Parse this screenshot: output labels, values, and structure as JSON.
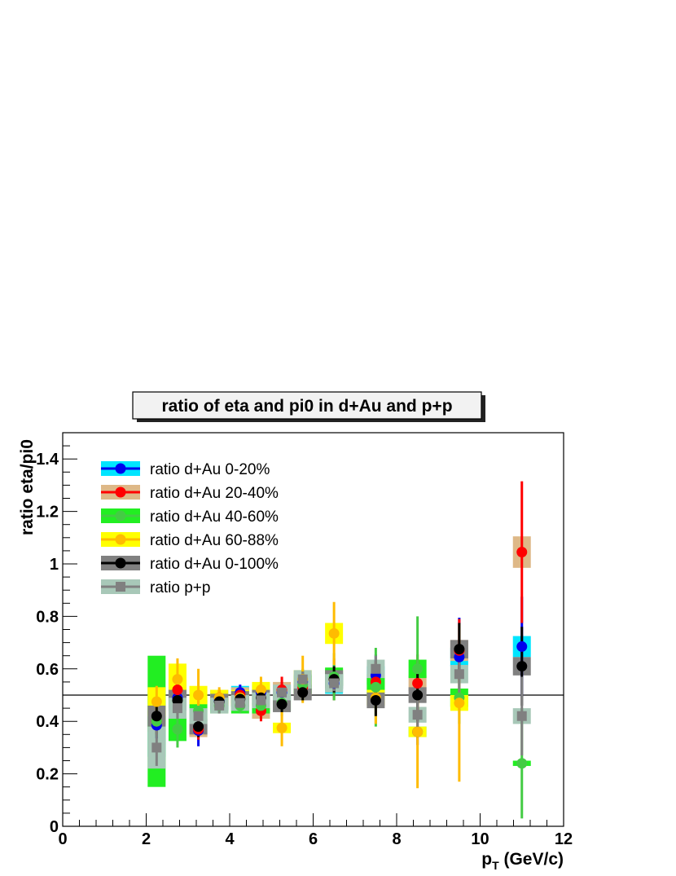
{
  "chart_data": {
    "type": "scatter",
    "title": "ratio of eta and pi0 in d+Au and p+p",
    "xlabel": "p",
    "xlabel_sub": "T",
    "xlabel_unit": " (GeV/c)",
    "ylabel": "ratio eta/pi0",
    "xlim": [
      0,
      12
    ],
    "ylim": [
      0,
      1.5
    ],
    "x_ticks": [
      "0",
      "2",
      "4",
      "6",
      "8",
      "10",
      "12"
    ],
    "y_ticks": [
      "0",
      "0.2",
      "0.4",
      "0.6",
      "0.8",
      "1",
      "1.2",
      "1.4"
    ],
    "grid": false,
    "legend_position": "top-left",
    "reference_line": 0.5,
    "series": [
      {
        "name": "ratio d+Au 0-20%",
        "marker_color": "#0000ee",
        "band_color": "#00e5ff",
        "marker": "circle",
        "points": [
          {
            "x": 2.25,
            "y": 0.385,
            "err": 0.05,
            "sys": 0.12
          },
          {
            "x": 2.75,
            "y": 0.49,
            "err": 0.05,
            "sys": 0.04
          },
          {
            "x": 3.25,
            "y": 0.365,
            "err": 0.06,
            "sys": 0.02
          },
          {
            "x": 3.75,
            "y": 0.48,
            "err": 0.03,
            "sys": 0.04
          },
          {
            "x": 4.25,
            "y": 0.51,
            "err": 0.03,
            "sys": 0.025
          },
          {
            "x": 4.75,
            "y": 0.51,
            "err": 0.03,
            "sys": 0.03
          },
          {
            "x": 5.25,
            "y": 0.51,
            "err": 0.04,
            "sys": 0.03
          },
          {
            "x": 5.75,
            "y": 0.55,
            "err": 0.04,
            "sys": 0.03
          },
          {
            "x": 6.5,
            "y": 0.545,
            "err": 0.05,
            "sys": 0.04
          },
          {
            "x": 7.5,
            "y": 0.575,
            "err": 0.08,
            "sys": 0.035
          },
          {
            "x": 8.5,
            "y": 0.36,
            "err": 0.05,
            "sys": 0.02
          },
          {
            "x": 9.5,
            "y": 0.645,
            "err": 0.15,
            "sys": 0.035
          },
          {
            "x": 11.0,
            "y": 0.685,
            "err": 0.19,
            "sys": 0.04
          }
        ]
      },
      {
        "name": "ratio d+Au 20-40%",
        "marker_color": "#ff0000",
        "band_color": "#deb887",
        "marker": "circle",
        "points": [
          {
            "x": 2.25,
            "y": 0.4,
            "err": 0.05,
            "sys": 0.04
          },
          {
            "x": 2.75,
            "y": 0.52,
            "err": 0.05,
            "sys": 0.04
          },
          {
            "x": 3.25,
            "y": 0.37,
            "err": 0.04,
            "sys": 0.03
          },
          {
            "x": 3.75,
            "y": 0.49,
            "err": 0.03,
            "sys": 0.03
          },
          {
            "x": 4.25,
            "y": 0.5,
            "err": 0.03,
            "sys": 0.03
          },
          {
            "x": 4.75,
            "y": 0.44,
            "err": 0.04,
            "sys": 0.03
          },
          {
            "x": 5.25,
            "y": 0.52,
            "err": 0.05,
            "sys": 0.03
          },
          {
            "x": 5.75,
            "y": 0.53,
            "err": 0.04,
            "sys": 0.03
          },
          {
            "x": 6.5,
            "y": 0.56,
            "err": 0.08,
            "sys": 0.04
          },
          {
            "x": 7.5,
            "y": 0.55,
            "err": 0.08,
            "sys": 0.03
          },
          {
            "x": 8.5,
            "y": 0.545,
            "err": 0.11,
            "sys": 0.03
          },
          {
            "x": 9.5,
            "y": 0.67,
            "err": 0.12,
            "sys": 0.04
          },
          {
            "x": 11.0,
            "y": 1.045,
            "err": 0.27,
            "sys": 0.06
          }
        ]
      },
      {
        "name": "ratio d+Au 40-60%",
        "marker_color": "#44cc44",
        "band_color": "#22ee22",
        "marker": "circle",
        "points": [
          {
            "x": 2.25,
            "y": 0.4,
            "err": 0.06,
            "sys": 0.25
          },
          {
            "x": 2.75,
            "y": 0.37,
            "err": 0.07,
            "sys": 0.045
          },
          {
            "x": 3.25,
            "y": 0.44,
            "err": 0.05,
            "sys": 0.04
          },
          {
            "x": 3.75,
            "y": 0.46,
            "err": 0.03,
            "sys": 0.03
          },
          {
            "x": 4.25,
            "y": 0.46,
            "err": 0.03,
            "sys": 0.03
          },
          {
            "x": 4.75,
            "y": 0.46,
            "err": 0.04,
            "sys": 0.03
          },
          {
            "x": 5.25,
            "y": 0.47,
            "err": 0.05,
            "sys": 0.03
          },
          {
            "x": 5.75,
            "y": 0.54,
            "err": 0.06,
            "sys": 0.035
          },
          {
            "x": 6.5,
            "y": 0.57,
            "err": 0.09,
            "sys": 0.035
          },
          {
            "x": 7.5,
            "y": 0.53,
            "err": 0.15,
            "sys": 0.035
          },
          {
            "x": 8.5,
            "y": 0.6,
            "err": 0.2,
            "sys": 0.035
          },
          {
            "x": 9.5,
            "y": 0.49,
            "err": 0.1,
            "sys": 0.035
          },
          {
            "x": 11.0,
            "y": 0.24,
            "err": 0.21,
            "sys": 0.01
          }
        ]
      },
      {
        "name": "ratio d+Au 60-88%",
        "marker_color": "#ffbb00",
        "band_color": "#ffff00",
        "marker": "circle",
        "points": [
          {
            "x": 2.25,
            "y": 0.475,
            "err": 0.06,
            "sys": 0.055
          },
          {
            "x": 2.75,
            "y": 0.56,
            "err": 0.08,
            "sys": 0.06
          },
          {
            "x": 3.25,
            "y": 0.5,
            "err": 0.1,
            "sys": 0.035
          },
          {
            "x": 3.75,
            "y": 0.49,
            "err": 0.04,
            "sys": 0.03
          },
          {
            "x": 4.25,
            "y": 0.49,
            "err": 0.04,
            "sys": 0.03
          },
          {
            "x": 4.75,
            "y": 0.52,
            "err": 0.05,
            "sys": 0.03
          },
          {
            "x": 5.25,
            "y": 0.375,
            "err": 0.07,
            "sys": 0.02
          },
          {
            "x": 5.75,
            "y": 0.56,
            "err": 0.09,
            "sys": 0.035
          },
          {
            "x": 6.5,
            "y": 0.735,
            "err": 0.12,
            "sys": 0.04
          },
          {
            "x": 7.5,
            "y": 0.49,
            "err": 0.1,
            "sys": 0.03
          },
          {
            "x": 8.5,
            "y": 0.36,
            "err": 0.215,
            "sys": 0.02
          },
          {
            "x": 9.5,
            "y": 0.47,
            "err": 0.3,
            "sys": 0.03
          }
        ]
      },
      {
        "name": "ratio d+Au 0-100%",
        "marker_color": "#000000",
        "band_color": "#808080",
        "marker": "circle",
        "points": [
          {
            "x": 2.25,
            "y": 0.42,
            "err": 0.05,
            "sys": 0.04
          },
          {
            "x": 2.75,
            "y": 0.48,
            "err": 0.04,
            "sys": 0.04
          },
          {
            "x": 3.25,
            "y": 0.38,
            "err": 0.04,
            "sys": 0.03
          },
          {
            "x": 3.75,
            "y": 0.475,
            "err": 0.02,
            "sys": 0.03
          },
          {
            "x": 4.25,
            "y": 0.485,
            "err": 0.02,
            "sys": 0.03
          },
          {
            "x": 4.75,
            "y": 0.49,
            "err": 0.03,
            "sys": 0.03
          },
          {
            "x": 5.25,
            "y": 0.465,
            "err": 0.03,
            "sys": 0.03
          },
          {
            "x": 5.75,
            "y": 0.51,
            "err": 0.03,
            "sys": 0.03
          },
          {
            "x": 6.5,
            "y": 0.56,
            "err": 0.05,
            "sys": 0.035
          },
          {
            "x": 7.5,
            "y": 0.48,
            "err": 0.06,
            "sys": 0.03
          },
          {
            "x": 8.5,
            "y": 0.5,
            "err": 0.1,
            "sys": 0.03
          },
          {
            "x": 9.5,
            "y": 0.675,
            "err": 0.1,
            "sys": 0.035
          },
          {
            "x": 11.0,
            "y": 0.61,
            "err": 0.15,
            "sys": 0.035
          }
        ]
      },
      {
        "name": "ratio p+p",
        "marker_color": "#808080",
        "band_color": "#a8c8b8",
        "marker": "square",
        "points": [
          {
            "x": 2.25,
            "y": 0.3,
            "err": 0.07,
            "sys": 0.08
          },
          {
            "x": 2.75,
            "y": 0.45,
            "err": 0.04,
            "sys": 0.04
          },
          {
            "x": 3.25,
            "y": 0.42,
            "err": 0.03,
            "sys": 0.03
          },
          {
            "x": 3.75,
            "y": 0.46,
            "err": 0.03,
            "sys": 0.03
          },
          {
            "x": 4.25,
            "y": 0.47,
            "err": 0.02,
            "sys": 0.03
          },
          {
            "x": 4.75,
            "y": 0.48,
            "err": 0.03,
            "sys": 0.03
          },
          {
            "x": 5.25,
            "y": 0.51,
            "err": 0.03,
            "sys": 0.03
          },
          {
            "x": 5.75,
            "y": 0.56,
            "err": 0.03,
            "sys": 0.035
          },
          {
            "x": 6.5,
            "y": 0.545,
            "err": 0.03,
            "sys": 0.035
          },
          {
            "x": 7.5,
            "y": 0.6,
            "err": 0.05,
            "sys": 0.035
          },
          {
            "x": 8.5,
            "y": 0.425,
            "err": 0.06,
            "sys": 0.03
          },
          {
            "x": 9.5,
            "y": 0.58,
            "err": 0.09,
            "sys": 0.035
          },
          {
            "x": 11.0,
            "y": 0.42,
            "err": 0.15,
            "sys": 0.03
          }
        ]
      }
    ]
  }
}
